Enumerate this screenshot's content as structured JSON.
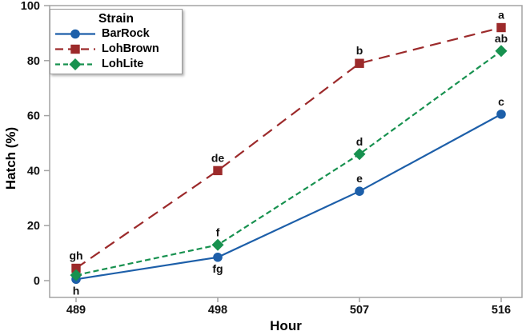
{
  "chart_data": {
    "type": "line",
    "title": "",
    "xlabel": "Hour",
    "ylabel": "Hatch (%)",
    "x": [
      489,
      498,
      507,
      516
    ],
    "xtick_labels": [
      "489",
      "498",
      "507",
      "516"
    ],
    "yticks": [
      0,
      20,
      40,
      60,
      80,
      100
    ],
    "ylim": [
      0,
      100
    ],
    "grid": false,
    "frame_color": "#a3a3a3",
    "text_color": "#111111",
    "legend": {
      "title": "Strain",
      "position": "top-left"
    },
    "series": [
      {
        "name": "BarRock",
        "color": "#1d5fa9",
        "marker": "circle",
        "line_style": "solid",
        "values": [
          0.5,
          8.5,
          32.5,
          60.5
        ],
        "point_labels": [
          "h",
          "fg",
          "e",
          "c"
        ],
        "label_positions": [
          "below",
          "below",
          "above",
          "above"
        ]
      },
      {
        "name": "LohBrown",
        "color": "#9c2a2b",
        "marker": "square",
        "line_style": "long-dash",
        "values": [
          4.5,
          40,
          79,
          92
        ],
        "point_labels": [
          "gh",
          "de",
          "b",
          "a"
        ],
        "label_positions": [
          "above",
          "above",
          "above",
          "above"
        ]
      },
      {
        "name": "LohLite",
        "color": "#17914f",
        "marker": "diamond",
        "line_style": "short-dash",
        "values": [
          2,
          13,
          46,
          83.5
        ],
        "point_labels": [
          "",
          "f",
          "d",
          "ab"
        ],
        "label_positions": [
          "above",
          "above",
          "above",
          "above"
        ]
      }
    ]
  }
}
